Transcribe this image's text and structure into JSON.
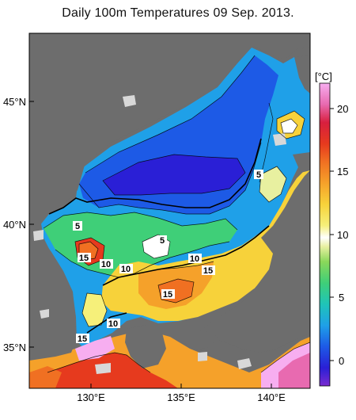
{
  "title": "Daily 100m Temperatures 09 Sep. 2013.",
  "x_axis": {
    "ticks": [
      "130°E",
      "135°E",
      "140°E"
    ]
  },
  "y_axis": {
    "ticks": [
      "45°N",
      "40°N",
      "35°N"
    ]
  },
  "colorbar": {
    "unit": "[°C]",
    "ticks": [
      "20",
      "15",
      "10",
      "5",
      "0"
    ],
    "range": [
      -2,
      22
    ],
    "colors": [
      "#7a2bd0",
      "#2a1fd6",
      "#1d5ae6",
      "#1fa0e8",
      "#1fc4b8",
      "#3fcf78",
      "#8ad85a",
      "#e8f0a0",
      "#ffffff",
      "#f6f07a",
      "#f7d23a",
      "#f5a12a",
      "#f07022",
      "#e63a1e",
      "#d81f3e",
      "#e86ab0",
      "#f7aef0"
    ]
  },
  "contour_labels": [
    "5",
    "5",
    "5",
    "15",
    "10",
    "10",
    "10",
    "15",
    "15",
    "10",
    "15"
  ],
  "colors": {
    "land": "#6d6d6d",
    "background": "#ffffff",
    "frame": "#000000"
  }
}
